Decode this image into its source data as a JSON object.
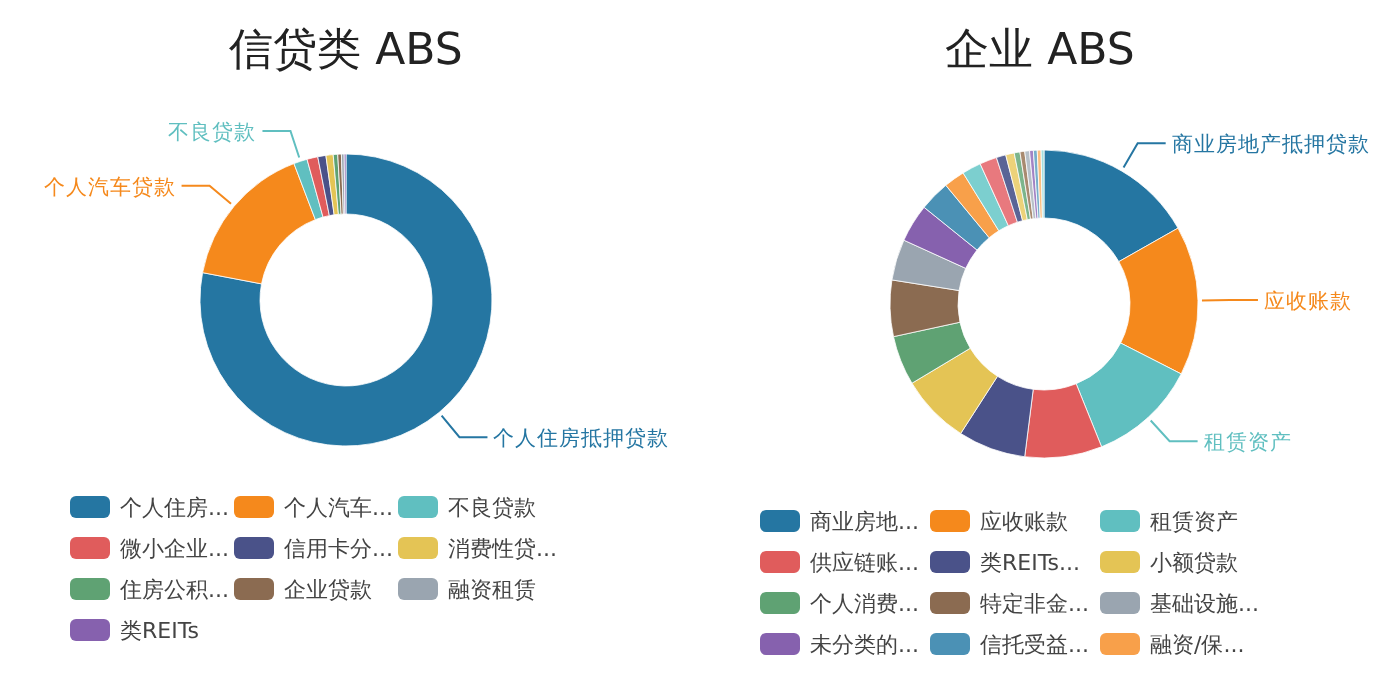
{
  "chart_data": [
    {
      "type": "donut",
      "title": "信贷类 ABS",
      "legend": "bottom",
      "categories": [
        "个人住房...",
        "个人汽车...",
        "不良贷款",
        "微小企业...",
        "信用卡分...",
        "消费性贷...",
        "住房公积...",
        "企业贷款",
        "融资租赁",
        "类REITs"
      ],
      "values": [
        78,
        16.2,
        1.5,
        1.2,
        0.9,
        0.8,
        0.5,
        0.4,
        0.3,
        0.2
      ],
      "colors": [
        "#2576a2",
        "#f5891c",
        "#60bfc0",
        "#e05c5c",
        "#4a5289",
        "#e4c455",
        "#5fa273",
        "#8b6b51",
        "#9aa5b0",
        "#8661ae"
      ],
      "annotations": [
        {
          "text": "个人住房抵押贷款",
          "x": "个人住房..."
        },
        {
          "text": "个人汽车贷款",
          "x": "个人汽车..."
        },
        {
          "text": "不良贷款",
          "x": "不良贷款"
        }
      ]
    },
    {
      "type": "donut",
      "title": "企业 ABS",
      "legend": "bottom",
      "categories": [
        "商业房地...",
        "应收账款",
        "租赁资产",
        "供应链账...",
        "类REITs...",
        "小额贷款",
        "个人消费...",
        "特定非金...",
        "基础设施...",
        "未分类的...",
        "信托受益...",
        "融资/保...",
        null,
        null,
        null,
        null,
        null,
        null,
        null,
        null,
        null,
        null,
        null
      ],
      "values": [
        16.8,
        15.7,
        11.4,
        8.1,
        7.1,
        7.3,
        5.2,
        5.9,
        4.3,
        4.0,
        3.2,
        2.2,
        2.0,
        1.8,
        1.0,
        0.9,
        0.6,
        0.5,
        0.5,
        0.4,
        0.4,
        0.4,
        0.3
      ],
      "colors": [
        "#2576a2",
        "#f5891c",
        "#60bfc0",
        "#e05c5c",
        "#4a5289",
        "#e4c455",
        "#5fa273",
        "#8b6b51",
        "#9aa5b0",
        "#8661ae",
        "#4b91b5",
        "#f8a04a",
        "#7ccfcf",
        "#e8797e",
        "#5a6496",
        "#ecd27a",
        "#7cb58c",
        "#a88a70",
        "#b7c0c8",
        "#a283c4",
        "#77aecb",
        "#fbbe80",
        "#a5dede"
      ],
      "annotations": [
        {
          "text": "商业房地产抵押贷款",
          "x": "商业房地..."
        },
        {
          "text": "应收账款",
          "x": "应收账款"
        },
        {
          "text": "租赁资产",
          "x": "租赁资产"
        }
      ]
    }
  ]
}
